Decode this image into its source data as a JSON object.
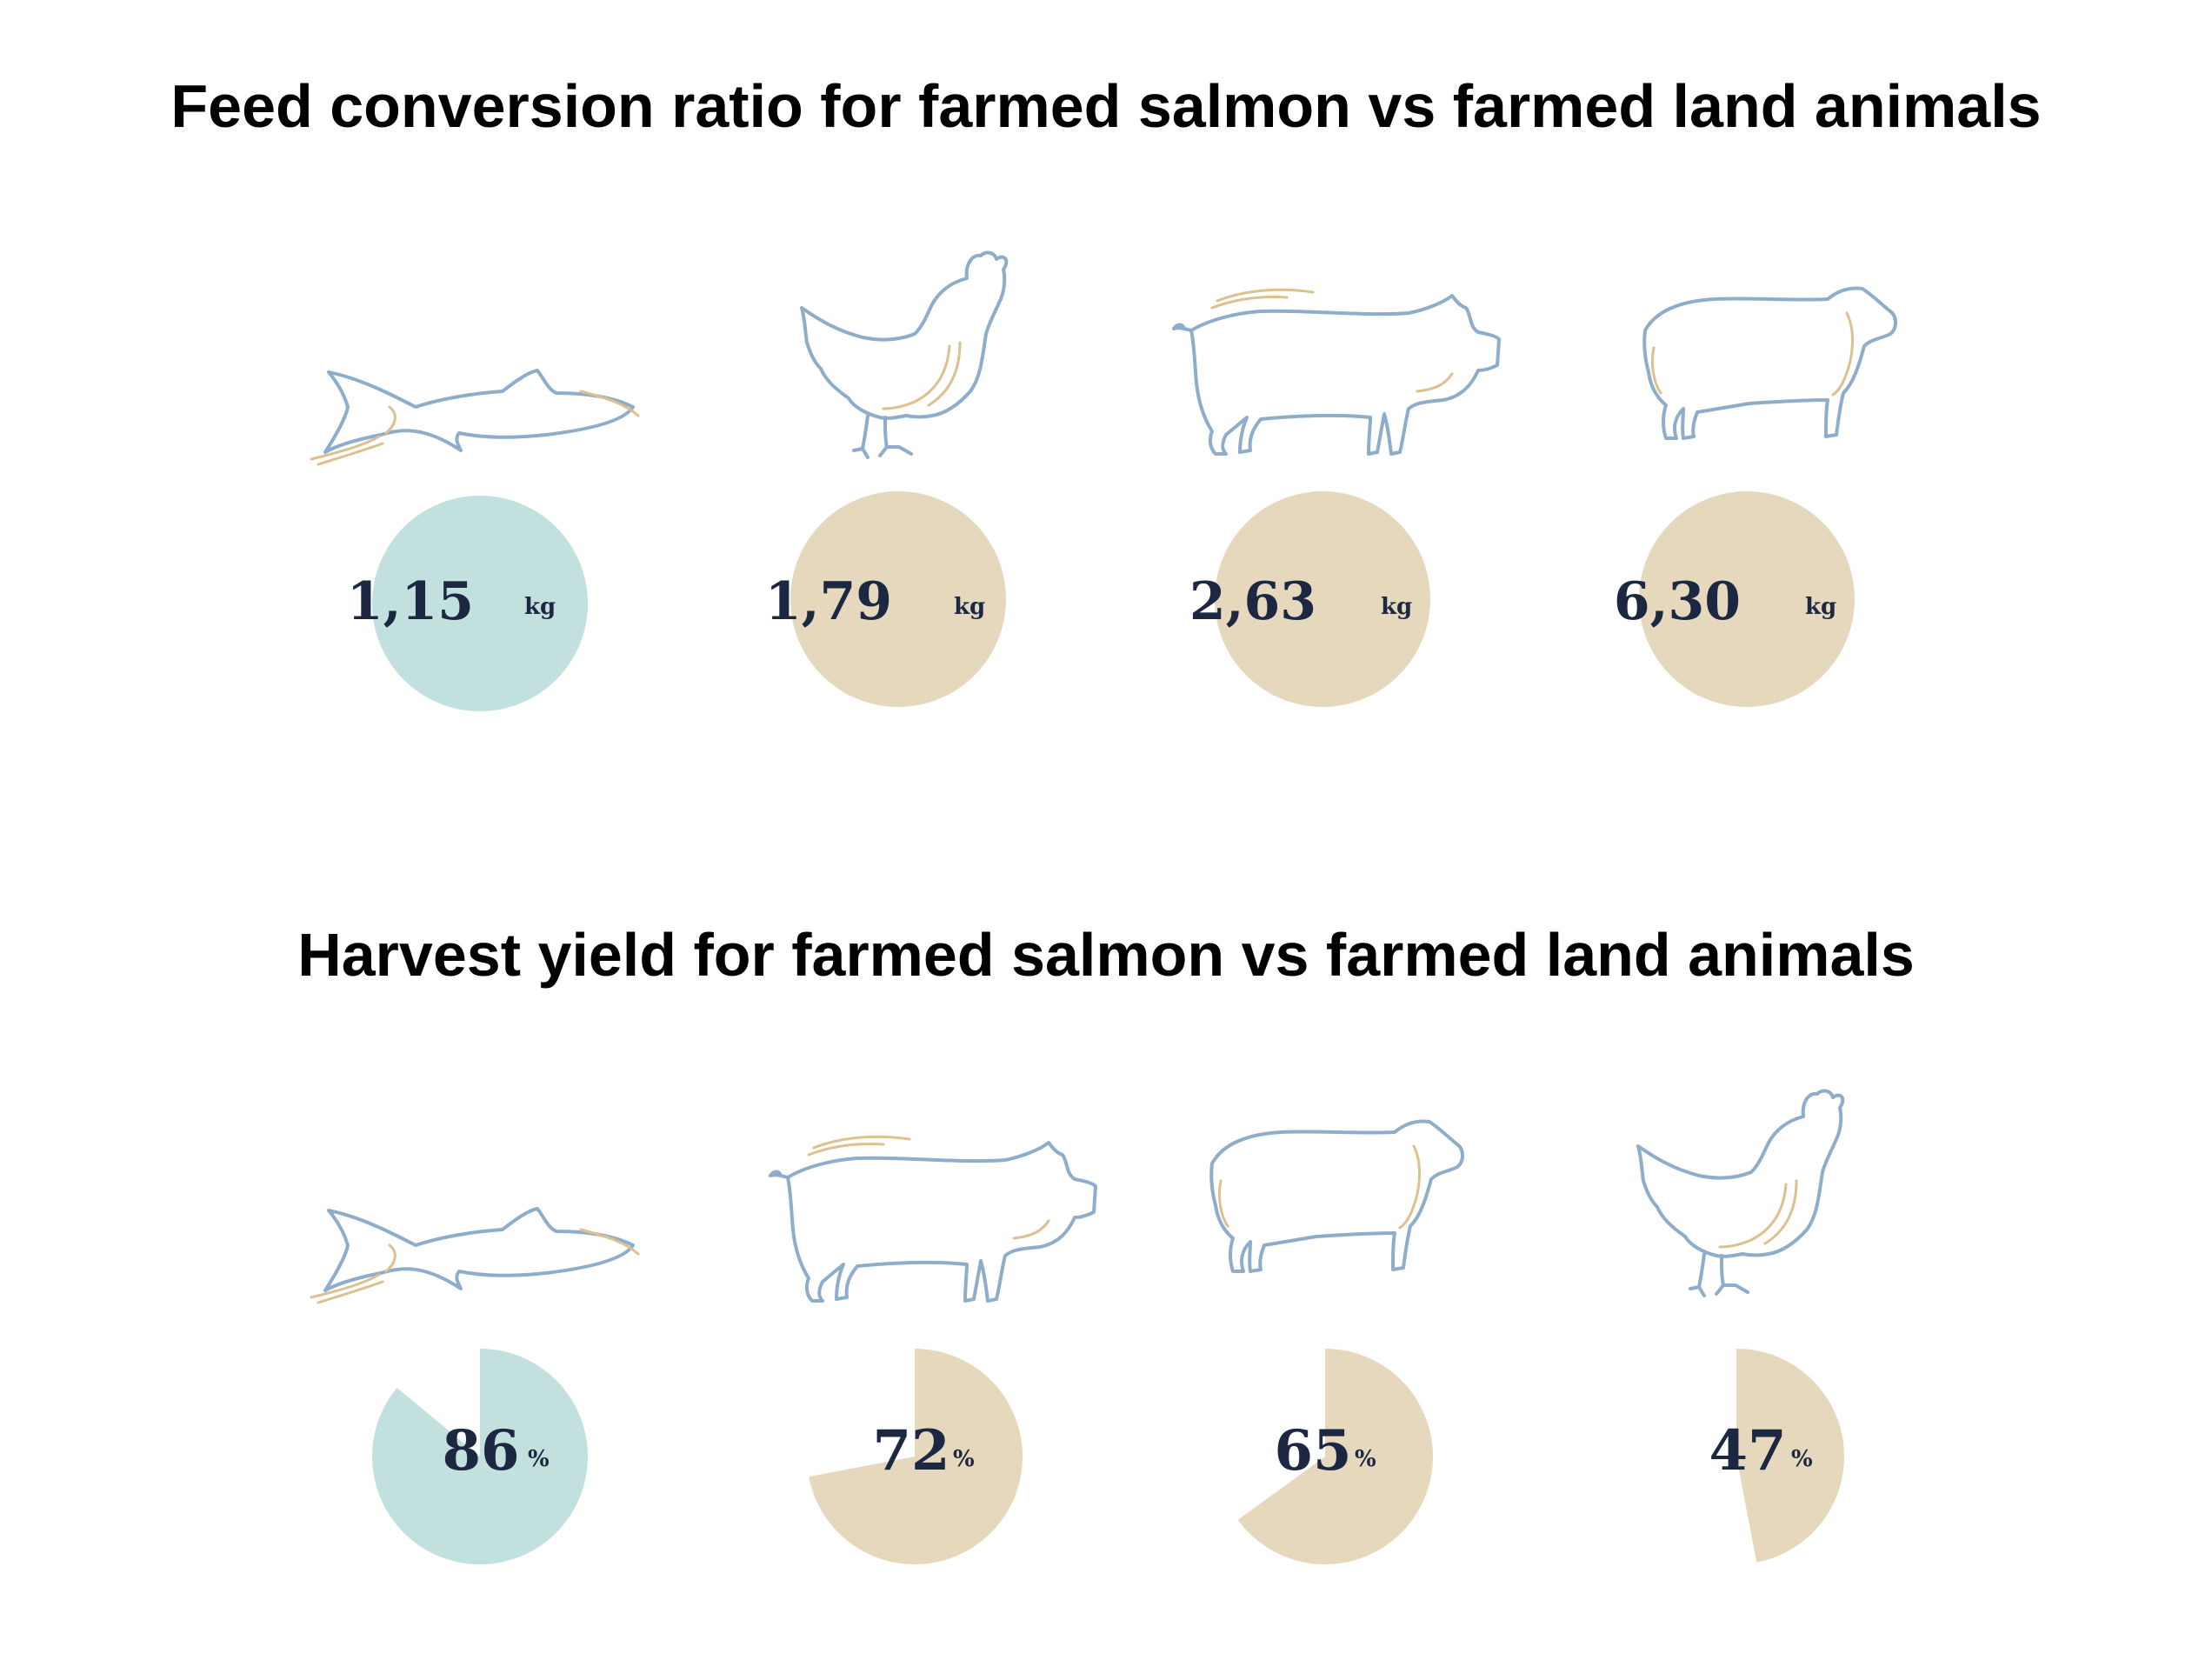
{
  "colors": {
    "salmon_fill": "#c2e0de",
    "land_fill": "#e6d8bd",
    "text": "#1c2841",
    "outline": "#8eadcb",
    "accent": "#dcc08e"
  },
  "chart_data": [
    {
      "type": "bubble",
      "title": "Feed conversion ratio for farmed salmon vs farmed land animals",
      "categories": [
        "salmon",
        "chicken",
        "pig",
        "sheep"
      ],
      "values": [
        1.15,
        1.79,
        2.63,
        6.3
      ],
      "labels": [
        "1,15",
        "1,79",
        "2,63",
        "6,30"
      ],
      "unit": "kg"
    },
    {
      "type": "pie",
      "title": "Harvest yield for farmed salmon vs farmed land animals",
      "categories": [
        "salmon",
        "pig",
        "sheep",
        "chicken"
      ],
      "values": [
        86,
        72,
        65,
        47
      ],
      "labels": [
        "86",
        "72",
        "65",
        "47"
      ],
      "unit": "%"
    }
  ]
}
